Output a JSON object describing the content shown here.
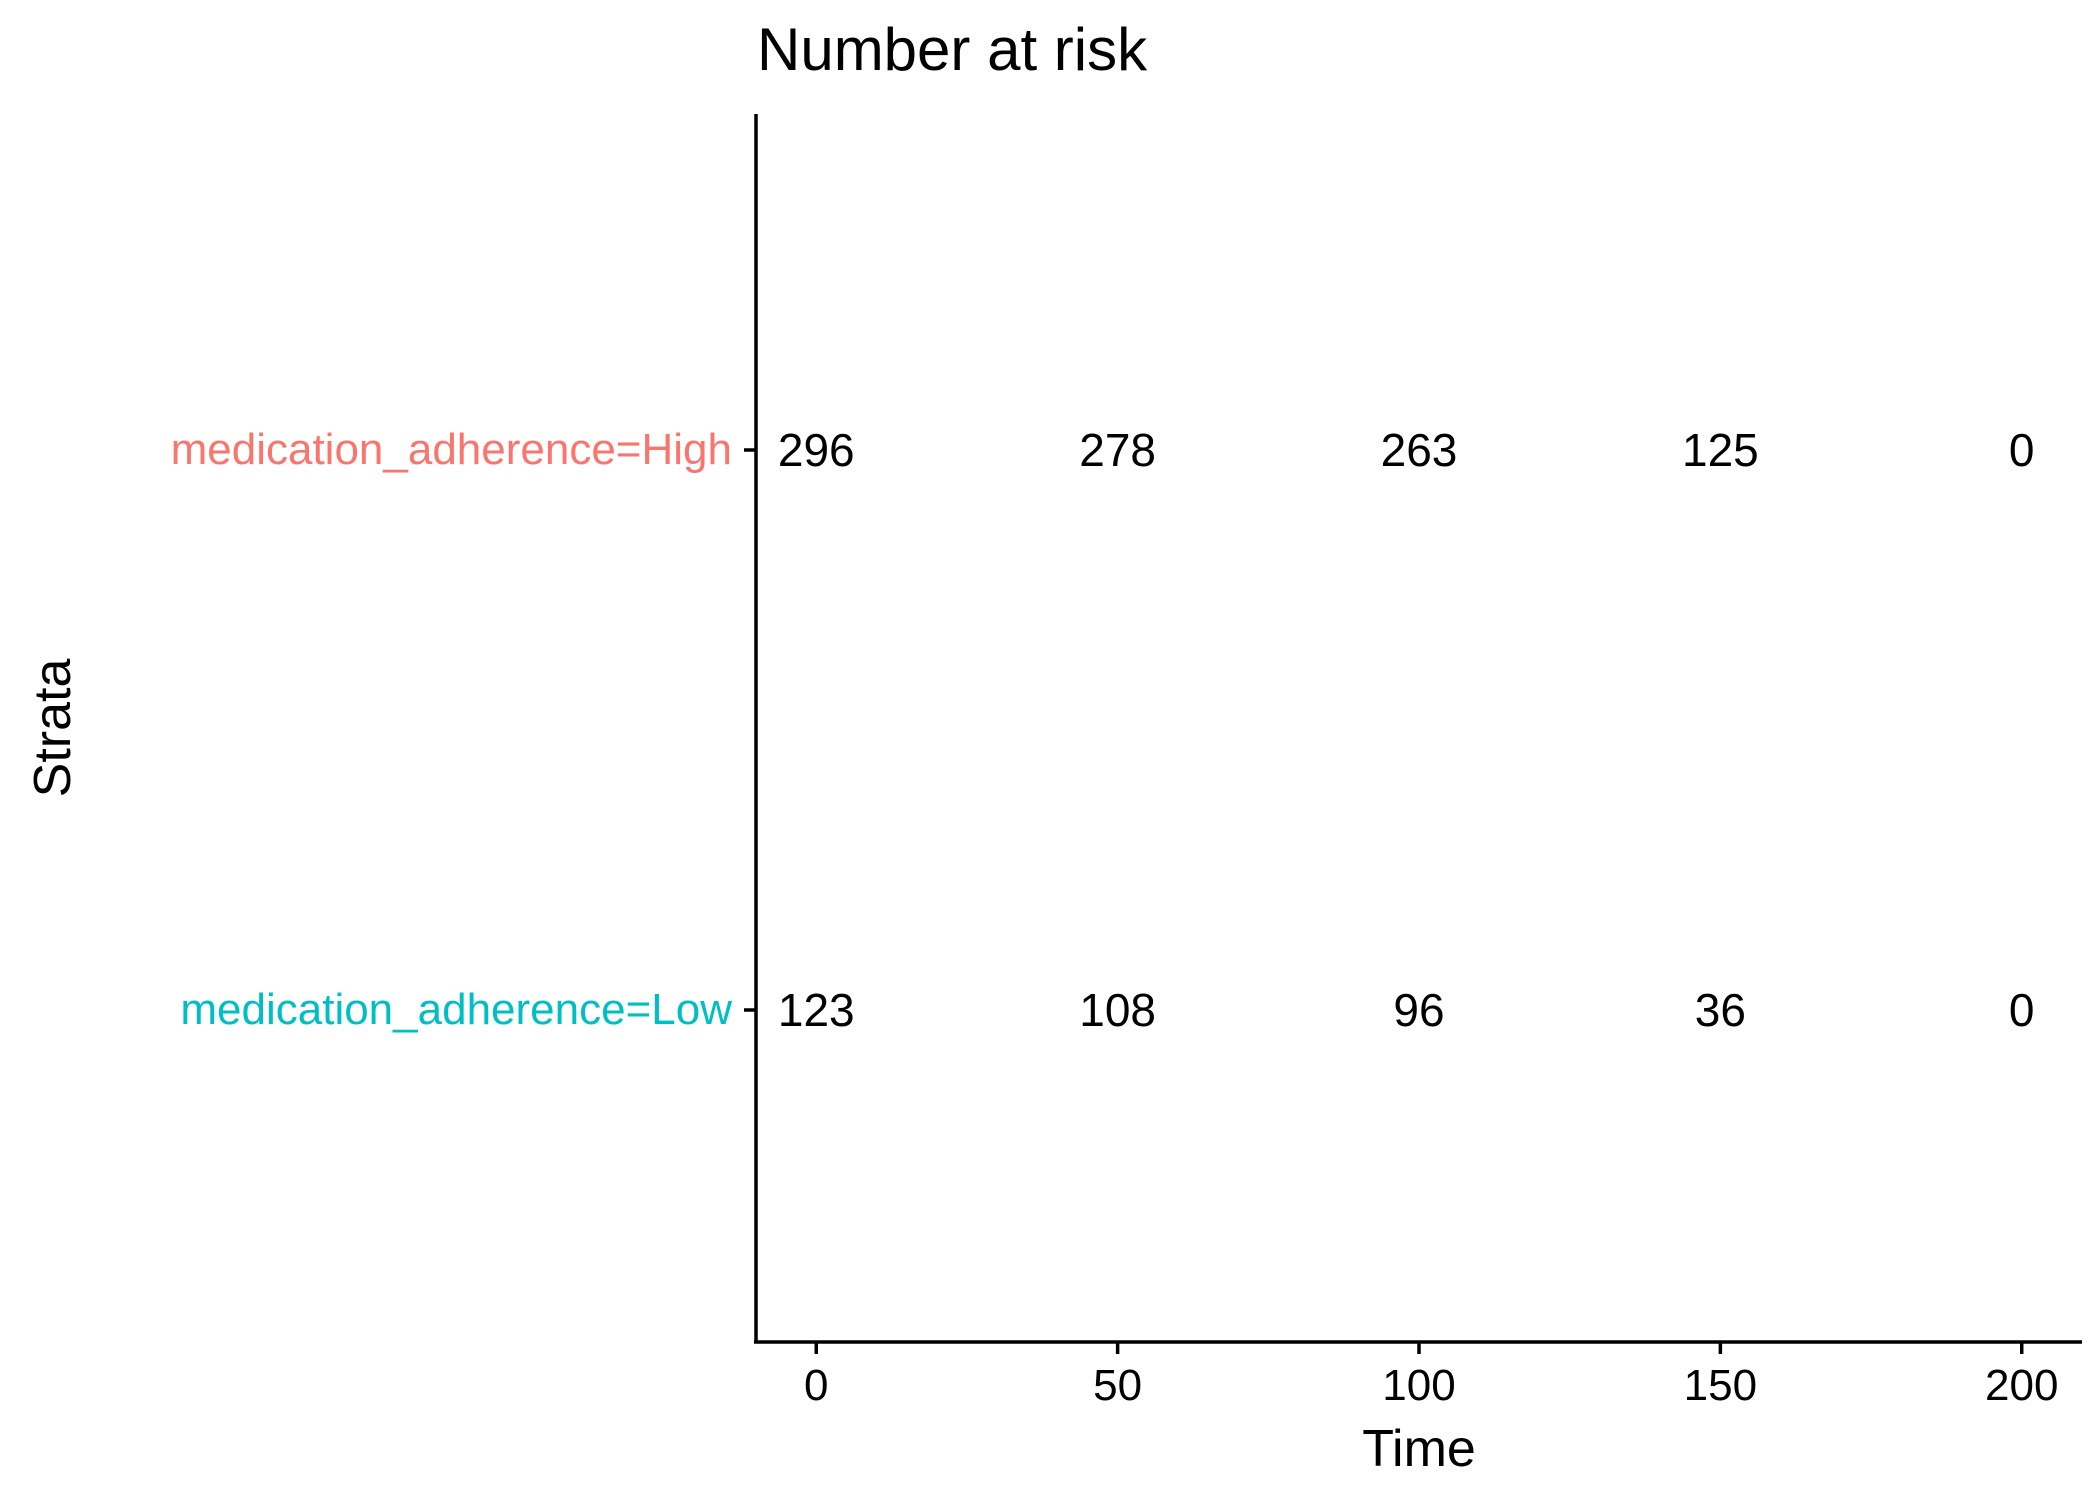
{
  "chart_data": {
    "type": "table",
    "title": "Number at risk",
    "xlabel": "Time",
    "ylabel": "Strata",
    "x": [
      0,
      50,
      100,
      150,
      200
    ],
    "xlim": [
      -10,
      210
    ],
    "x_ticks": [
      "0",
      "50",
      "100",
      "150",
      "200"
    ],
    "grid": false,
    "series": [
      {
        "name": "medication_adherence=High",
        "color": "#F8766D",
        "values": [
          296,
          278,
          263,
          125,
          0
        ]
      },
      {
        "name": "medication_adherence=Low",
        "color": "#00BFC4",
        "values": [
          123,
          108,
          96,
          36,
          0
        ]
      }
    ]
  }
}
